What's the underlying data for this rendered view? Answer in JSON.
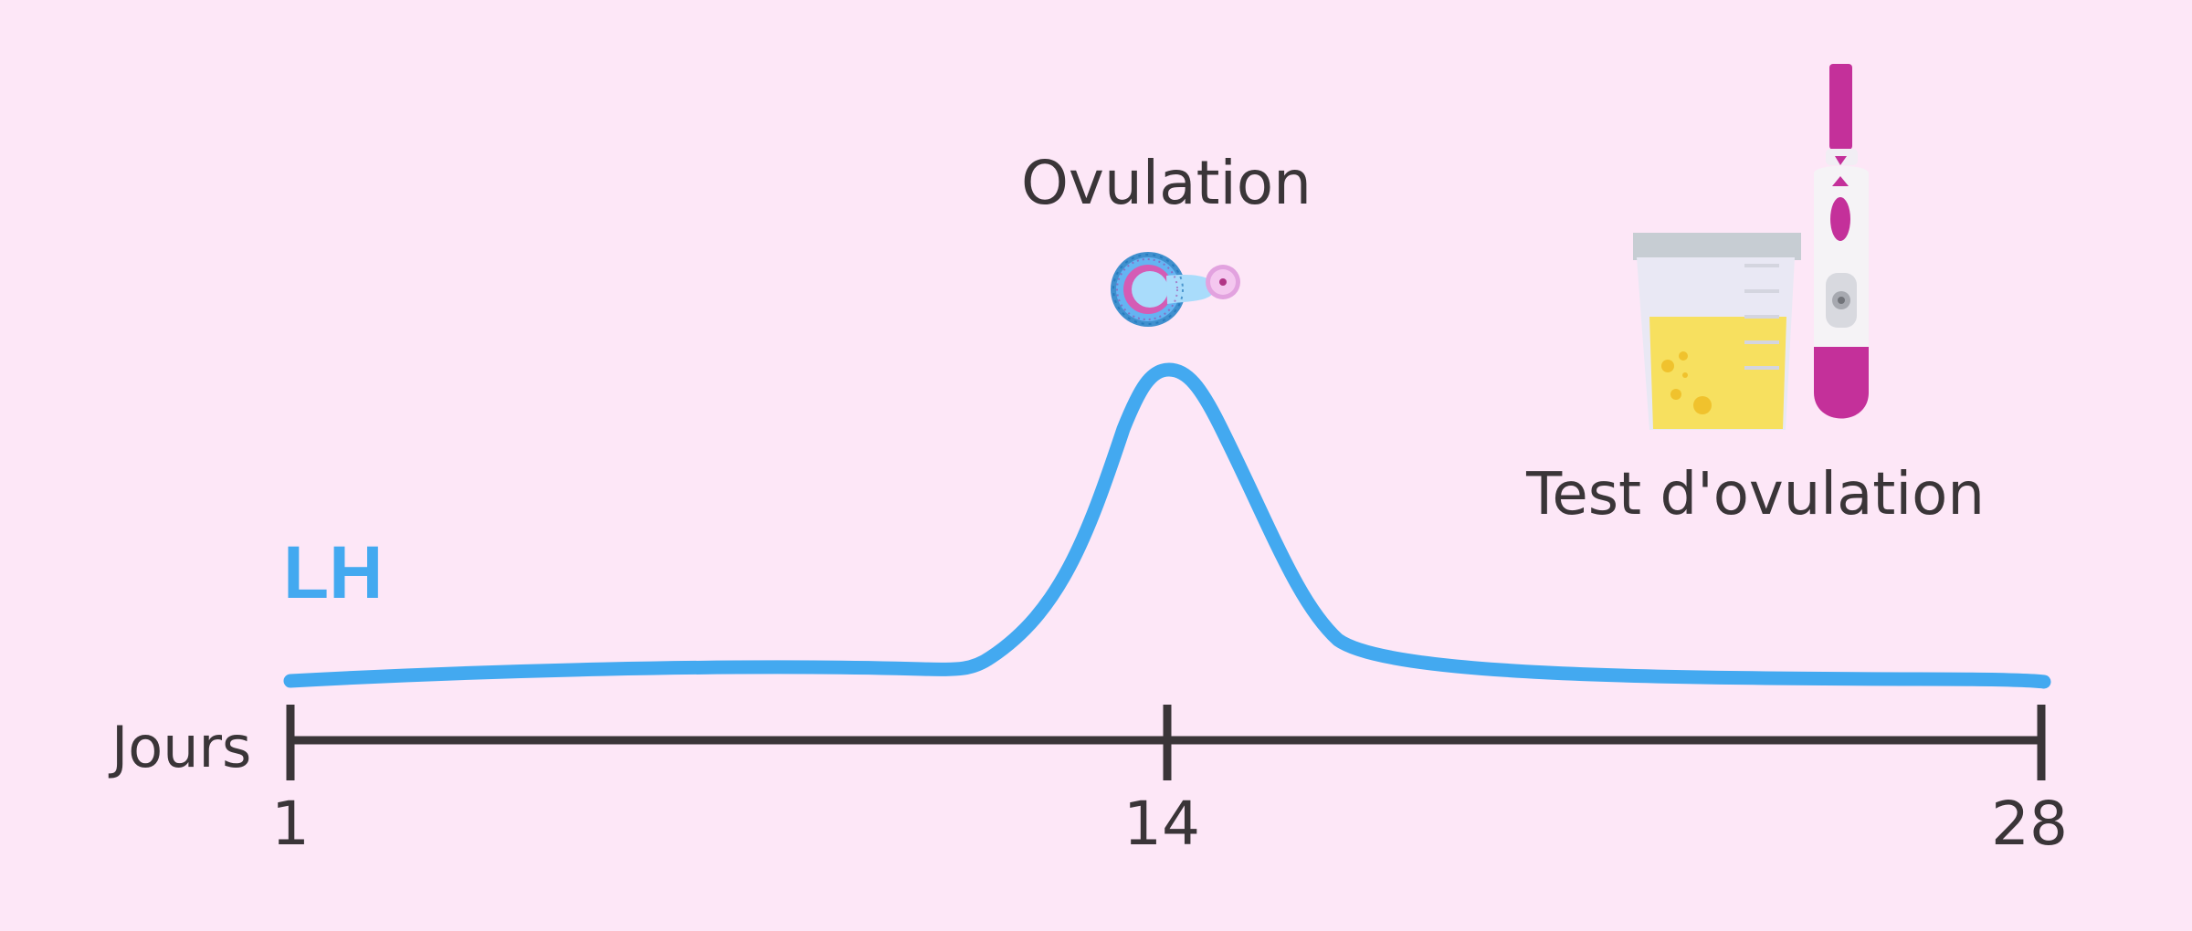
{
  "diagram": {
    "curve_label": "LH",
    "axis_label": "Jours",
    "ticks": [
      "1",
      "14",
      "28"
    ],
    "ovulation_label": "Ovulation",
    "test_label": "Test d'ovulation"
  },
  "colors": {
    "background": "#fde7f7",
    "curve": "#43a9f0",
    "axis": "#3a3538",
    "label": "#3a3538",
    "lh_label": "#43a9f0",
    "test_magenta": "#c4309a",
    "urine": "#f7e05f"
  },
  "icons": {
    "ovulation": "ovum-release-icon",
    "test": "urine-cup-icon",
    "stick": "ovulation-test-stick-icon"
  }
}
